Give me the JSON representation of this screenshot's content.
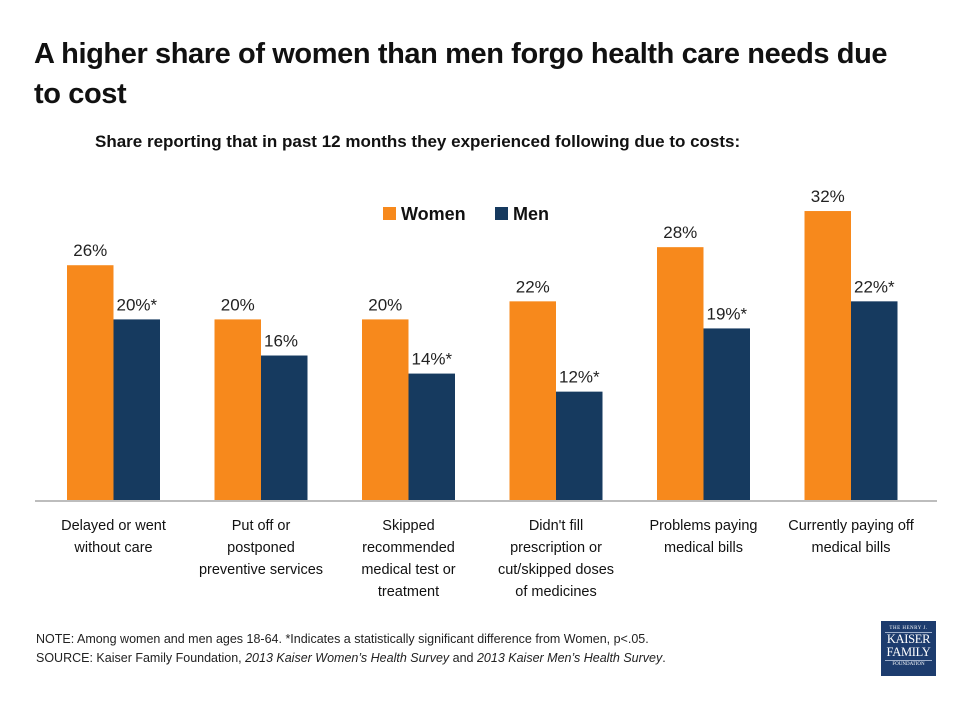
{
  "title": "A higher share of women than men forgo health care needs due to cost",
  "subtitle": "Share reporting that in past 12 months they experienced following due to costs:",
  "note": "NOTE: Among women and men ages 18-64. *Indicates a statistically significant difference from Women, p<.05.",
  "source": {
    "prefix": "SOURCE: Kaiser Family Foundation, ",
    "survey1": "2013 Kaiser Women’s Health Survey",
    "middle": " and ",
    "survey2": "2013 Kaiser Men’s Health Survey",
    "suffix": "."
  },
  "logo": {
    "top": "THE HENRY J.",
    "line1": "KAISER",
    "line2": "FAMILY",
    "bottom": "FOUNDATION"
  },
  "colors": {
    "women": "#f7891c",
    "men": "#163a5f",
    "axis": "#bdbdbd"
  },
  "chart_data": {
    "type": "bar",
    "title": "A higher share of women than men forgo health care needs due to cost",
    "subtitle": "Share reporting that in past 12 months they experienced following due to costs:",
    "xlabel": "",
    "ylabel": "",
    "ylim": [
      0,
      35
    ],
    "grid": false,
    "legend": {
      "position": "top-center",
      "entries": [
        "Women",
        "Men"
      ]
    },
    "categories": [
      [
        "Delayed or went",
        "without care"
      ],
      [
        "Put off or",
        "postponed",
        "preventive services"
      ],
      [
        "Skipped",
        "recommended",
        "medical test or",
        "treatment"
      ],
      [
        "Didn't fill",
        "prescription or",
        "cut/skipped doses",
        "of medicines"
      ],
      [
        "Problems paying",
        "medical bills"
      ],
      [
        "Currently paying off",
        "medical bills"
      ]
    ],
    "series": [
      {
        "name": "Women",
        "values": [
          26,
          20,
          20,
          22,
          28,
          32
        ],
        "labels": [
          "26%",
          "20%",
          "20%",
          "22%",
          "28%",
          "32%"
        ]
      },
      {
        "name": "Men",
        "values": [
          20,
          16,
          14,
          12,
          19,
          22
        ],
        "labels": [
          "20%*",
          "16%",
          "14%*",
          "12%*",
          "19%*",
          "22%*"
        ]
      }
    ]
  }
}
